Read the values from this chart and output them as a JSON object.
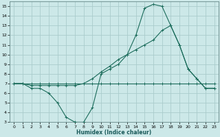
{
  "xlabel": "Humidex (Indice chaleur)",
  "bg_color": "#cce8e8",
  "grid_color": "#aacccc",
  "line_color": "#1a6b5a",
  "xlim": [
    -0.5,
    23.5
  ],
  "ylim": [
    3,
    15.5
  ],
  "yticks": [
    3,
    4,
    5,
    6,
    7,
    8,
    9,
    10,
    11,
    12,
    13,
    14,
    15
  ],
  "xticks": [
    0,
    1,
    2,
    3,
    4,
    5,
    6,
    7,
    8,
    9,
    10,
    11,
    12,
    13,
    14,
    15,
    16,
    17,
    18,
    19,
    20,
    21,
    22,
    23
  ],
  "series1_x": [
    0,
    1,
    2,
    3,
    4,
    5,
    6,
    7,
    8,
    9,
    10,
    11,
    12,
    13,
    14,
    15,
    16,
    17,
    18,
    19,
    20,
    21,
    22,
    23
  ],
  "series1_y": [
    7,
    7,
    7,
    7,
    7,
    7,
    7,
    7,
    7,
    7,
    7,
    7,
    7,
    7,
    7,
    7,
    7,
    7,
    7,
    7,
    7,
    7,
    7,
    7
  ],
  "series2_x": [
    0,
    1,
    2,
    3,
    4,
    5,
    6,
    7,
    8,
    9,
    10,
    11,
    12,
    13,
    14,
    15,
    16,
    17,
    18,
    19,
    20,
    21,
    22,
    23
  ],
  "series2_y": [
    7,
    7,
    6.5,
    6.5,
    6,
    5,
    3.5,
    3,
    3,
    4.5,
    8,
    8.5,
    9,
    10,
    12,
    14.8,
    15.2,
    15,
    13,
    11,
    8.5,
    7.5,
    6.5,
    6.5
  ],
  "series3_x": [
    0,
    1,
    2,
    3,
    4,
    5,
    6,
    7,
    8,
    9,
    10,
    11,
    12,
    13,
    14,
    15,
    16,
    17,
    18,
    19,
    20,
    21,
    22,
    23
  ],
  "series3_y": [
    7,
    7,
    6.8,
    6.8,
    6.8,
    6.8,
    6.8,
    6.8,
    7,
    7.5,
    8.2,
    8.8,
    9.5,
    10,
    10.5,
    11,
    11.5,
    12.5,
    13,
    11,
    8.5,
    7.5,
    6.5,
    6.5
  ]
}
